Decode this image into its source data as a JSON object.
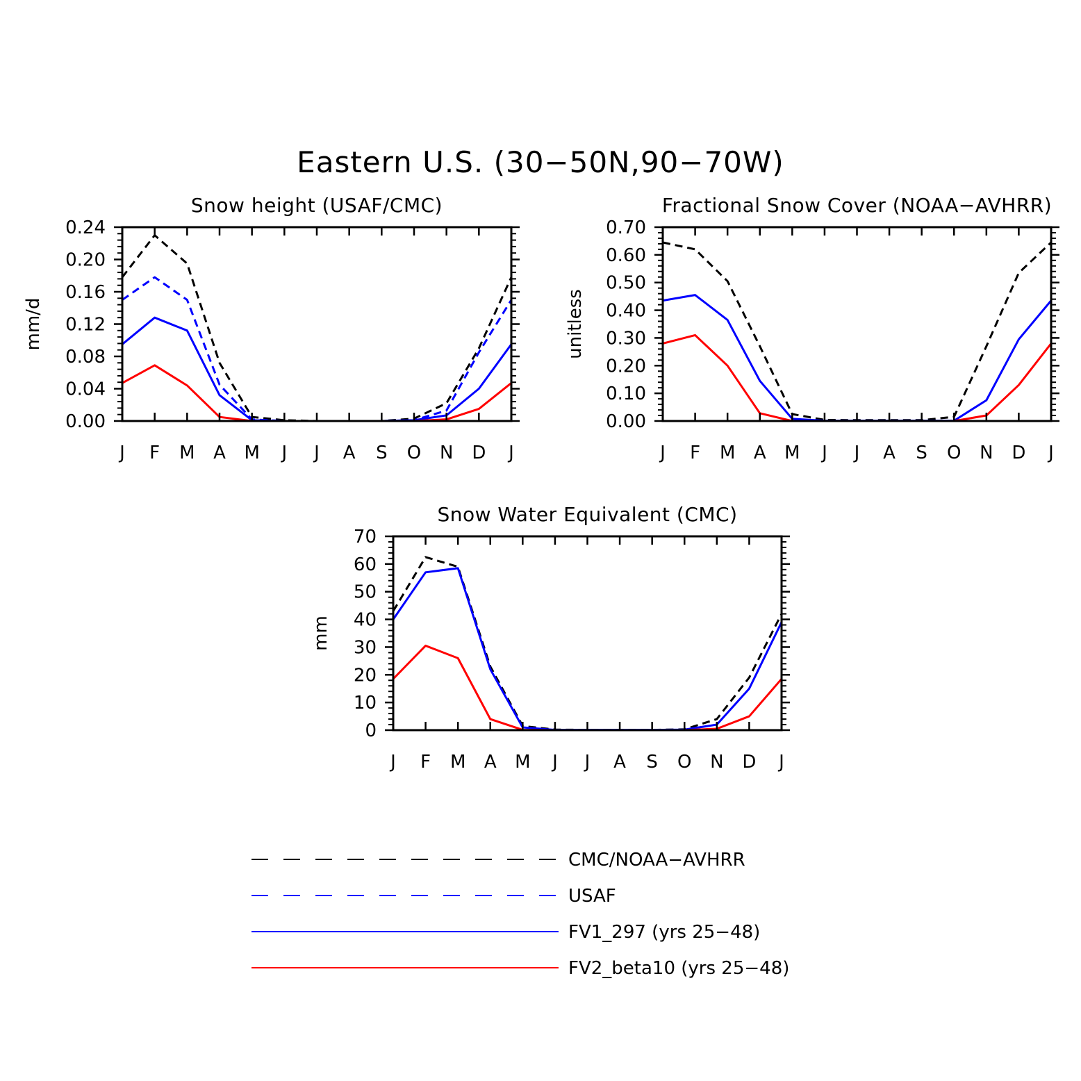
{
  "figure": {
    "title": "Eastern U.S. (30−50N,90−70W)"
  },
  "legend": [
    {
      "label": "CMC/NOAA−AVHRR",
      "color": "#000000",
      "dash": "dashed"
    },
    {
      "label": "USAF",
      "color": "#0000ff",
      "dash": "dashed"
    },
    {
      "label": "FV1_297 (yrs 25−48)",
      "color": "#0000ff",
      "dash": "solid"
    },
    {
      "label": "FV2_beta10 (yrs 25−48)",
      "color": "#ff0000",
      "dash": "solid"
    }
  ],
  "chart_data": [
    {
      "type": "line",
      "title": "Snow height (USAF/CMC)",
      "xlabel": "",
      "ylabel": "mm/d",
      "categories": [
        "J",
        "F",
        "M",
        "A",
        "M",
        "J",
        "J",
        "A",
        "S",
        "O",
        "N",
        "D",
        "J"
      ],
      "ylim": [
        0,
        0.24
      ],
      "yticks": [
        "0.00",
        "0.04",
        "0.08",
        "0.12",
        "0.16",
        "0.20",
        "0.24"
      ],
      "series": [
        {
          "name": "CMC/NOAA−AVHRR",
          "color": "#000000",
          "dash": "dashed",
          "values": [
            0.178,
            0.23,
            0.195,
            0.072,
            0.005,
            0.001,
            0.0,
            0.0,
            0.0,
            0.003,
            0.022,
            0.09,
            0.178
          ]
        },
        {
          "name": "USAF",
          "color": "#0000ff",
          "dash": "dashed",
          "values": [
            0.15,
            0.178,
            0.15,
            0.045,
            0.002,
            0.0,
            0.0,
            0.0,
            0.0,
            0.001,
            0.013,
            0.085,
            0.15
          ]
        },
        {
          "name": "FV1_297 (yrs 25−48)",
          "color": "#0000ff",
          "dash": "solid",
          "values": [
            0.095,
            0.128,
            0.112,
            0.032,
            0.001,
            0.0,
            0.0,
            0.0,
            0.0,
            0.001,
            0.007,
            0.04,
            0.095
          ]
        },
        {
          "name": "FV2_beta10 (yrs 25−48)",
          "color": "#ff0000",
          "dash": "solid",
          "values": [
            0.047,
            0.069,
            0.044,
            0.005,
            0.0,
            0.0,
            0.0,
            0.0,
            0.0,
            0.0,
            0.002,
            0.015,
            0.047
          ]
        }
      ]
    },
    {
      "type": "line",
      "title": "Fractional Snow Cover (NOAA−AVHRR)",
      "xlabel": "",
      "ylabel": "unitless",
      "categories": [
        "J",
        "F",
        "M",
        "A",
        "M",
        "J",
        "J",
        "A",
        "S",
        "O",
        "N",
        "D",
        "J"
      ],
      "ylim": [
        0,
        0.7
      ],
      "yticks": [
        "0.00",
        "0.10",
        "0.20",
        "0.30",
        "0.40",
        "0.50",
        "0.60",
        "0.70"
      ],
      "series": [
        {
          "name": "CMC/NOAA−AVHRR",
          "color": "#000000",
          "dash": "dashed",
          "values": [
            0.645,
            0.62,
            0.505,
            0.27,
            0.025,
            0.004,
            0.003,
            0.003,
            0.003,
            0.015,
            0.27,
            0.535,
            0.645
          ]
        },
        {
          "name": "FV1_297 (yrs 25−48)",
          "color": "#0000ff",
          "dash": "solid",
          "values": [
            0.435,
            0.455,
            0.365,
            0.145,
            0.008,
            0.001,
            0.001,
            0.001,
            0.001,
            0.001,
            0.075,
            0.295,
            0.435
          ]
        },
        {
          "name": "FV2_beta10 (yrs 25−48)",
          "color": "#ff0000",
          "dash": "solid",
          "values": [
            0.28,
            0.31,
            0.2,
            0.028,
            0.0,
            0.0,
            0.0,
            0.0,
            0.0,
            0.0,
            0.02,
            0.13,
            0.28
          ]
        }
      ]
    },
    {
      "type": "line",
      "title": "Snow Water Equivalent (CMC)",
      "xlabel": "",
      "ylabel": "mm",
      "categories": [
        "J",
        "F",
        "M",
        "A",
        "M",
        "J",
        "J",
        "A",
        "S",
        "O",
        "N",
        "D",
        "J"
      ],
      "ylim": [
        0,
        70
      ],
      "yticks": [
        "0",
        "10",
        "20",
        "30",
        "40",
        "50",
        "60",
        "70"
      ],
      "series": [
        {
          "name": "CMC/NOAA−AVHRR",
          "color": "#000000",
          "dash": "dashed",
          "values": [
            43.0,
            62.5,
            59.0,
            23.0,
            1.5,
            0.2,
            0.1,
            0.1,
            0.1,
            0.3,
            4.0,
            19.0,
            42.0
          ]
        },
        {
          "name": "FV1_297 (yrs 25−48)",
          "color": "#0000ff",
          "dash": "solid",
          "values": [
            40.0,
            57.0,
            58.5,
            22.0,
            1.0,
            0.1,
            0.1,
            0.1,
            0.1,
            0.2,
            2.0,
            15.0,
            39.0
          ]
        },
        {
          "name": "FV2_beta10 (yrs 25−48)",
          "color": "#ff0000",
          "dash": "solid",
          "values": [
            18.5,
            30.5,
            26.0,
            4.0,
            0.1,
            0.0,
            0.0,
            0.0,
            0.0,
            0.0,
            0.5,
            5.0,
            18.5
          ]
        }
      ]
    }
  ]
}
